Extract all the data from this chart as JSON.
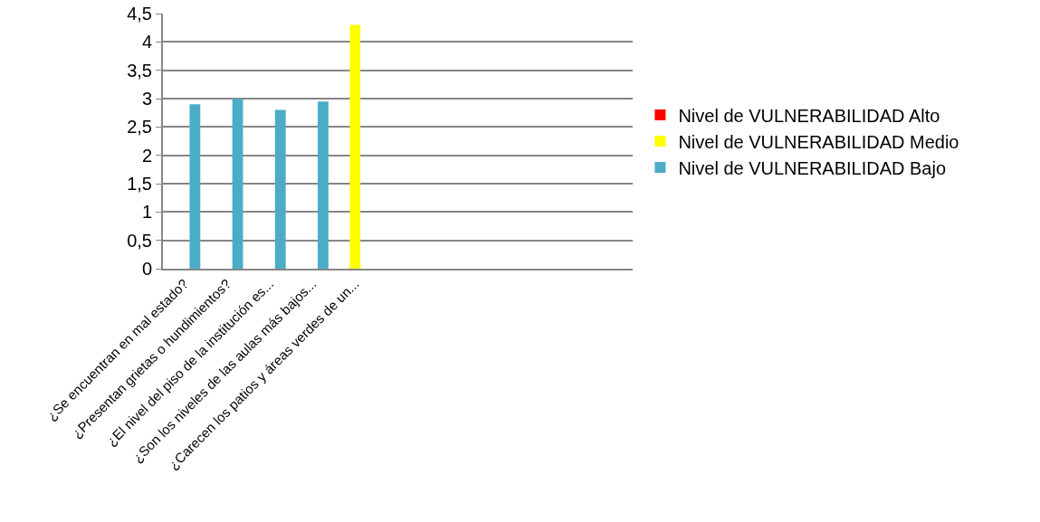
{
  "chart_data": {
    "type": "bar",
    "categories": [
      "¿Se encuentran en mal estado?",
      "¿Presentan grietas o hundimientos?",
      "¿El nivel del piso de la institución es...",
      "¿Son los niveles de las aulas más bajos...",
      "¿Carecen los patios y áreas verdes de un...",
      null,
      null,
      null,
      null,
      null,
      null
    ],
    "series": [
      {
        "name": "Nivel de VULNERABILIDAD Alto",
        "color": "#ff0000",
        "values": [
          null,
          null,
          null,
          null,
          null,
          null,
          null,
          null,
          null,
          null,
          null
        ]
      },
      {
        "name": "Nivel de VULNERABILIDAD Medio",
        "color": "#ffff00",
        "values": [
          null,
          null,
          null,
          null,
          4.3,
          null,
          null,
          null,
          null,
          null,
          null
        ]
      },
      {
        "name": "Nivel de VULNERABILIDAD Bajo",
        "color": "#4bacc6",
        "values": [
          2.9,
          3,
          2.8,
          2.95,
          null,
          null,
          null,
          null,
          null,
          null,
          null
        ]
      }
    ],
    "ylim": [
      0,
      4.5
    ],
    "yticks": [
      0,
      {
        "value": 0.5,
        "label": "0,5"
      },
      1,
      {
        "value": 1.5,
        "label": "1,5"
      },
      2,
      {
        "value": 2.5,
        "label": "2,5"
      },
      3,
      {
        "value": 3.5,
        "label": "3,5"
      },
      4,
      {
        "value": 4.5,
        "label": "4,5"
      }
    ],
    "grid": "y",
    "legend": "right"
  }
}
